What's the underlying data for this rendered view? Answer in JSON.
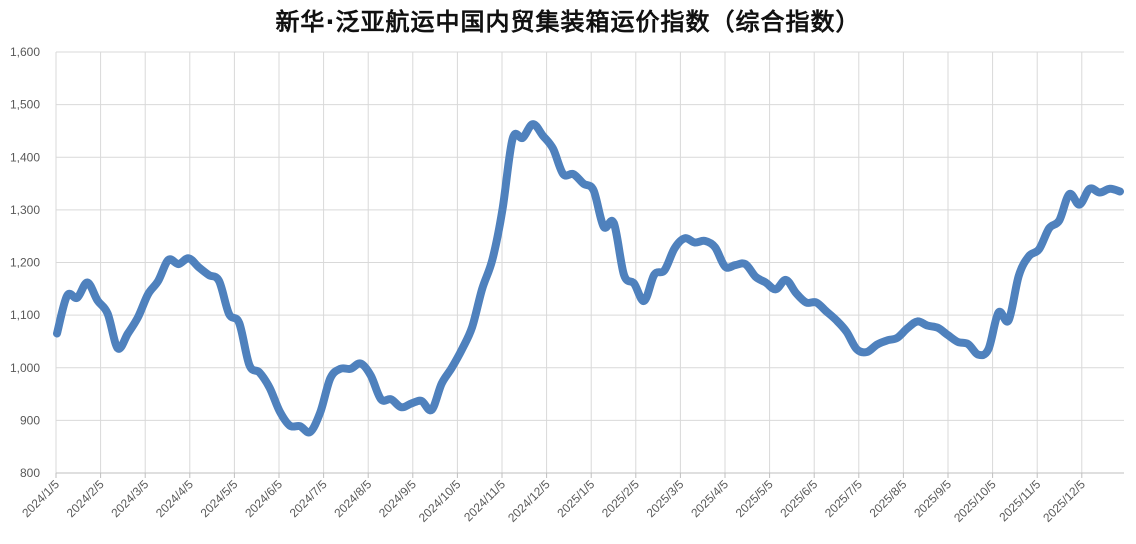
{
  "chart_data": {
    "type": "line",
    "title": "新华·泛亚航运中国内贸集装箱运价指数（综合指数）",
    "xlabel": "",
    "ylabel": "",
    "ylim": [
      800,
      1600
    ],
    "yticks": [
      "800",
      "900",
      "1,000",
      "1,100",
      "1,200",
      "1,300",
      "1,400",
      "1,500",
      "1,600"
    ],
    "xticks": [
      "2024/1/5",
      "2024/2/5",
      "2024/3/5",
      "2024/4/5",
      "2024/5/5",
      "2024/6/5",
      "2024/7/5",
      "2024/8/5",
      "2024/9/5",
      "2024/10/5",
      "2024/11/5",
      "2024/12/5",
      "2025/1/5",
      "2025/2/5",
      "2025/3/5",
      "2025/4/5",
      "2025/5/5",
      "2025/6/5",
      "2025/7/5",
      "2025/8/5",
      "2025/9/5",
      "2025/10/5",
      "2025/11/5",
      "2025/12/5"
    ],
    "grid": true,
    "legend": "none",
    "line_color": "#4f81bd",
    "series": [
      {
        "values": [
          1065,
          1137,
          1133,
          1162,
          1128,
          1103,
          1037,
          1065,
          1096,
          1140,
          1165,
          1205,
          1197,
          1208,
          1191,
          1176,
          1165,
          1102,
          1085,
          1005,
          991,
          962,
          917,
          890,
          889,
          878,
          915,
          980,
          998,
          998,
          1008,
          985,
          940,
          940,
          925,
          932,
          937,
          920,
          970,
          1000,
          1035,
          1077,
          1150,
          1205,
          1300,
          1435,
          1437,
          1463,
          1441,
          1416,
          1368,
          1368,
          1350,
          1337,
          1268,
          1275,
          1177,
          1160,
          1127,
          1177,
          1185,
          1227,
          1246,
          1238,
          1241,
          1229,
          1192,
          1195,
          1197,
          1173,
          1162,
          1149,
          1167,
          1142,
          1124,
          1124,
          1107,
          1090,
          1068,
          1035,
          1030,
          1044,
          1052,
          1057,
          1075,
          1088,
          1080,
          1076,
          1062,
          1049,
          1045,
          1025,
          1035,
          1105,
          1090,
          1175,
          1212,
          1225,
          1265,
          1280,
          1330,
          1310,
          1340,
          1333,
          1340,
          1335
        ]
      }
    ]
  }
}
